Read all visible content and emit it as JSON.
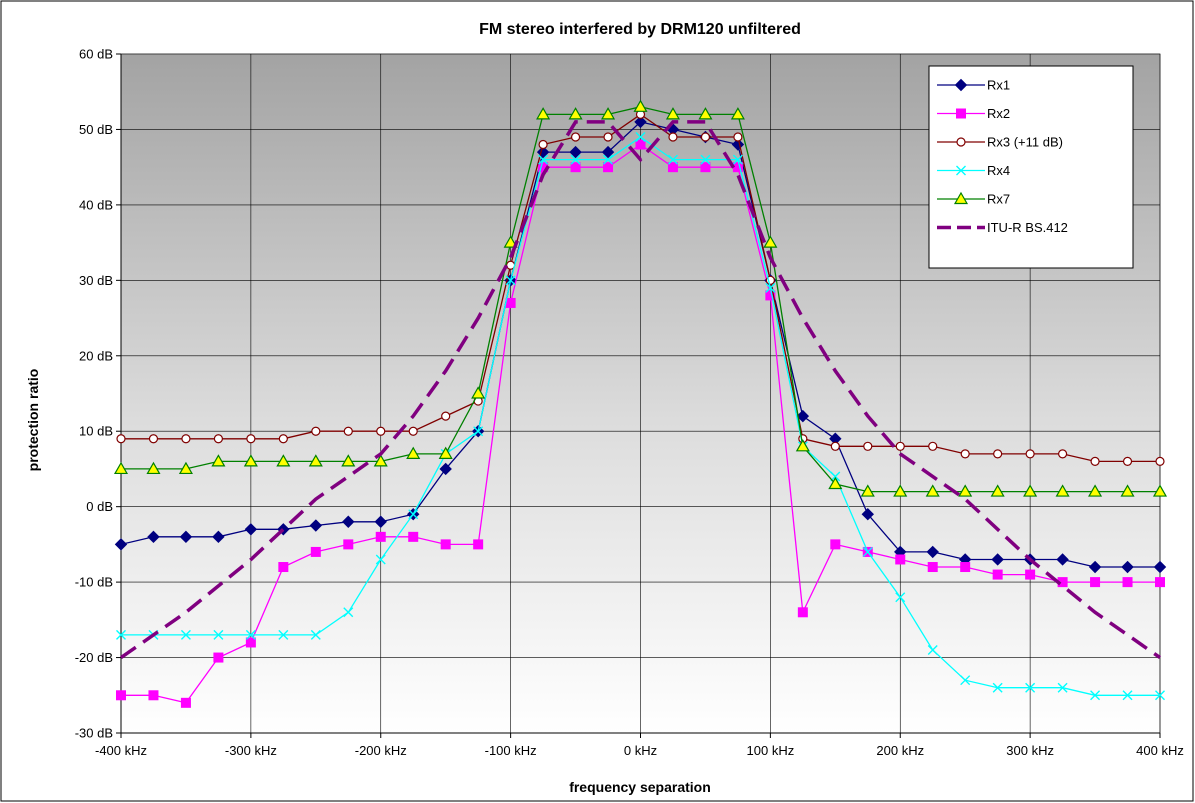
{
  "chart_data": {
    "type": "line",
    "title": "FM stereo interfered by DRM120 unfiltered",
    "xlabel": "frequency separation",
    "ylabel": "protection ratio",
    "x_unit": "kHz",
    "y_unit": "dB",
    "xlim": [
      -400,
      400
    ],
    "ylim": [
      -30,
      60
    ],
    "x_ticks": [
      -400,
      -300,
      -200,
      -100,
      0,
      100,
      200,
      300,
      400
    ],
    "y_ticks": [
      -30,
      -20,
      -10,
      0,
      10,
      20,
      30,
      40,
      50,
      60
    ],
    "x_tick_labels": [
      "-400 kHz",
      "-300 kHz",
      "-200 kHz",
      "-100 kHz",
      "0 kHz",
      "100 kHz",
      "200 kHz",
      "300 kHz",
      "400 kHz"
    ],
    "y_tick_labels": [
      "-30 dB",
      "-20 dB",
      "-10 dB",
      "0 dB",
      "10 dB",
      "20 dB",
      "30 dB",
      "40 dB",
      "50 dB",
      "60 dB"
    ],
    "grid": true,
    "legend_position": "top-right",
    "x": [
      -400,
      -375,
      -350,
      -325,
      -300,
      -275,
      -250,
      -225,
      -200,
      -175,
      -150,
      -125,
      -100,
      -75,
      -50,
      -25,
      0,
      25,
      50,
      75,
      100,
      125,
      150,
      175,
      200,
      225,
      250,
      275,
      300,
      325,
      350,
      375,
      400
    ],
    "series": [
      {
        "name": "Rx1",
        "color": "#000080",
        "marker": "diamond",
        "dashed": false,
        "values": [
          -5,
          -4,
          -4,
          -4,
          -3,
          -3,
          -2.5,
          -2,
          -2,
          -1,
          5,
          10,
          30,
          47,
          47,
          47,
          51,
          50,
          49,
          48,
          30,
          12,
          9,
          -1,
          -6,
          -6,
          -7,
          -7,
          -7,
          -7,
          -8,
          -8,
          -8
        ]
      },
      {
        "name": "Rx2",
        "color": "#ff00ff",
        "marker": "square",
        "dashed": false,
        "values": [
          -25,
          -25,
          -26,
          -20,
          -18,
          -8,
          -6,
          -5,
          -4,
          -4,
          -5,
          -5,
          27,
          45,
          45,
          45,
          48,
          45,
          45,
          45,
          28,
          -14,
          -5,
          -6,
          -7,
          -8,
          -8,
          -9,
          -9,
          -10,
          -10,
          -10,
          -10
        ]
      },
      {
        "name": "Rx3 (+11 dB)",
        "color": "#800000",
        "marker": "circle",
        "dashed": false,
        "values": [
          9,
          9,
          9,
          9,
          9,
          9,
          10,
          10,
          10,
          10,
          12,
          14,
          32,
          48,
          49,
          49,
          52,
          49,
          49,
          49,
          30,
          9,
          8,
          8,
          8,
          8,
          7,
          7,
          7,
          7,
          6,
          6,
          6
        ]
      },
      {
        "name": "Rx4",
        "color": "#00ffff",
        "marker": "x",
        "dashed": false,
        "values": [
          -17,
          -17,
          -17,
          -17,
          -17,
          -17,
          -17,
          -14,
          -7,
          -1,
          7,
          10,
          30,
          46,
          46,
          46,
          49,
          46,
          46,
          46,
          29,
          8,
          4,
          -6,
          -12,
          -19,
          -23,
          -24,
          -24,
          -24,
          -25,
          -25,
          -25
        ]
      },
      {
        "name": "Rx7",
        "color": "#008000",
        "marker": "triangle",
        "dashed": false,
        "values": [
          5,
          5,
          5,
          6,
          6,
          6,
          6,
          6,
          6,
          7,
          7,
          15,
          35,
          52,
          52,
          52,
          53,
          52,
          52,
          52,
          35,
          8,
          3,
          2,
          2,
          2,
          2,
          2,
          2,
          2,
          2,
          2,
          2
        ]
      },
      {
        "name": "ITU-R BS.412",
        "color": "#800080",
        "marker": "none",
        "dashed": true,
        "x": [
          -400,
          -350,
          -300,
          -250,
          -200,
          -175,
          -150,
          -125,
          -100,
          -75,
          -50,
          -25,
          0,
          25,
          50,
          75,
          100,
          125,
          150,
          175,
          200,
          250,
          300,
          350,
          400
        ],
        "values": [
          -20,
          -14,
          -7,
          1,
          7,
          12,
          18,
          25,
          33,
          44,
          51,
          51,
          46,
          51,
          51,
          44,
          33,
          25,
          18,
          12,
          7,
          1,
          -7,
          -14,
          -20
        ]
      }
    ]
  }
}
